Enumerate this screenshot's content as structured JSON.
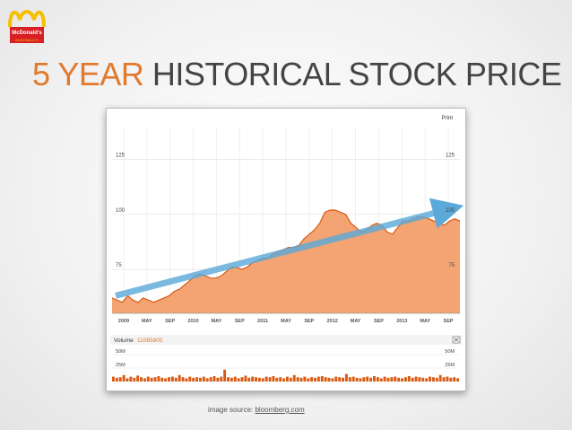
{
  "logo": {
    "top_text": "McDonald's",
    "bottom_text": "McDONALD'S"
  },
  "title": {
    "accent": "5 YEAR",
    "rest": " HISTORICAL STOCK PRICE"
  },
  "print_label": "Print",
  "volume": {
    "label": "Volume",
    "value": "11085805"
  },
  "caption": {
    "prefix": "image source: ",
    "link": "bloomberg.com"
  },
  "colors": {
    "accent": "#e07a2e",
    "area": "#f4a472",
    "line": "#d95a12",
    "trend": "#5aa9d8"
  },
  "chart_data": {
    "type": "area",
    "x_tick_labels": [
      "2009",
      "MAY",
      "SEP",
      "2010",
      "MAY",
      "SEP",
      "2011",
      "MAY",
      "SEP",
      "2012",
      "MAY",
      "SEP",
      "2013",
      "MAY",
      "SEP"
    ],
    "y_ticks": [
      {
        "value": 125,
        "label": "125"
      },
      {
        "value": 100,
        "label": "100"
      },
      {
        "value": 75,
        "label": "75"
      }
    ],
    "ylim": [
      55,
      140
    ],
    "grid": true,
    "series": [
      {
        "values": [
          62,
          61,
          60,
          63,
          61,
          60,
          62,
          61,
          60,
          61,
          62,
          63,
          65,
          66,
          68,
          70,
          72,
          73,
          72,
          71,
          71,
          72,
          74,
          76,
          76,
          75,
          76,
          78,
          79,
          80,
          80,
          82,
          83,
          84,
          85,
          85,
          86,
          89,
          91,
          93,
          96,
          101,
          102,
          102,
          101,
          100,
          96,
          94,
          92,
          93,
          95,
          96,
          95,
          92,
          91,
          94,
          97,
          97,
          98,
          99,
          99,
          98,
          97,
          96,
          95,
          97,
          98,
          97
        ]
      }
    ],
    "trend": {
      "start": 63,
      "end": 103
    },
    "volume": {
      "y_ticks": [
        {
          "value": 50,
          "label": "50M"
        },
        {
          "value": 25,
          "label": "25M"
        }
      ],
      "max": 60,
      "values": [
        9,
        7,
        8,
        12,
        6,
        9,
        7,
        11,
        8,
        6,
        9,
        7,
        8,
        10,
        7,
        6,
        8,
        9,
        7,
        12,
        8,
        6,
        9,
        7,
        8,
        7,
        9,
        6,
        8,
        10,
        7,
        9,
        22,
        8,
        7,
        9,
        6,
        8,
        11,
        7,
        9,
        8,
        7,
        6,
        9,
        8,
        10,
        7,
        8,
        6,
        9,
        7,
        12,
        8,
        7,
        9,
        6,
        8,
        7,
        9,
        10,
        8,
        7,
        6,
        9,
        8,
        7,
        14,
        8,
        9,
        7,
        6,
        8,
        9,
        7,
        10,
        8,
        6,
        9,
        7,
        8,
        9,
        7,
        6,
        8,
        10,
        7,
        9,
        8,
        7,
        6,
        9,
        8,
        7,
        12,
        8,
        9,
        7,
        8,
        6
      ]
    }
  }
}
